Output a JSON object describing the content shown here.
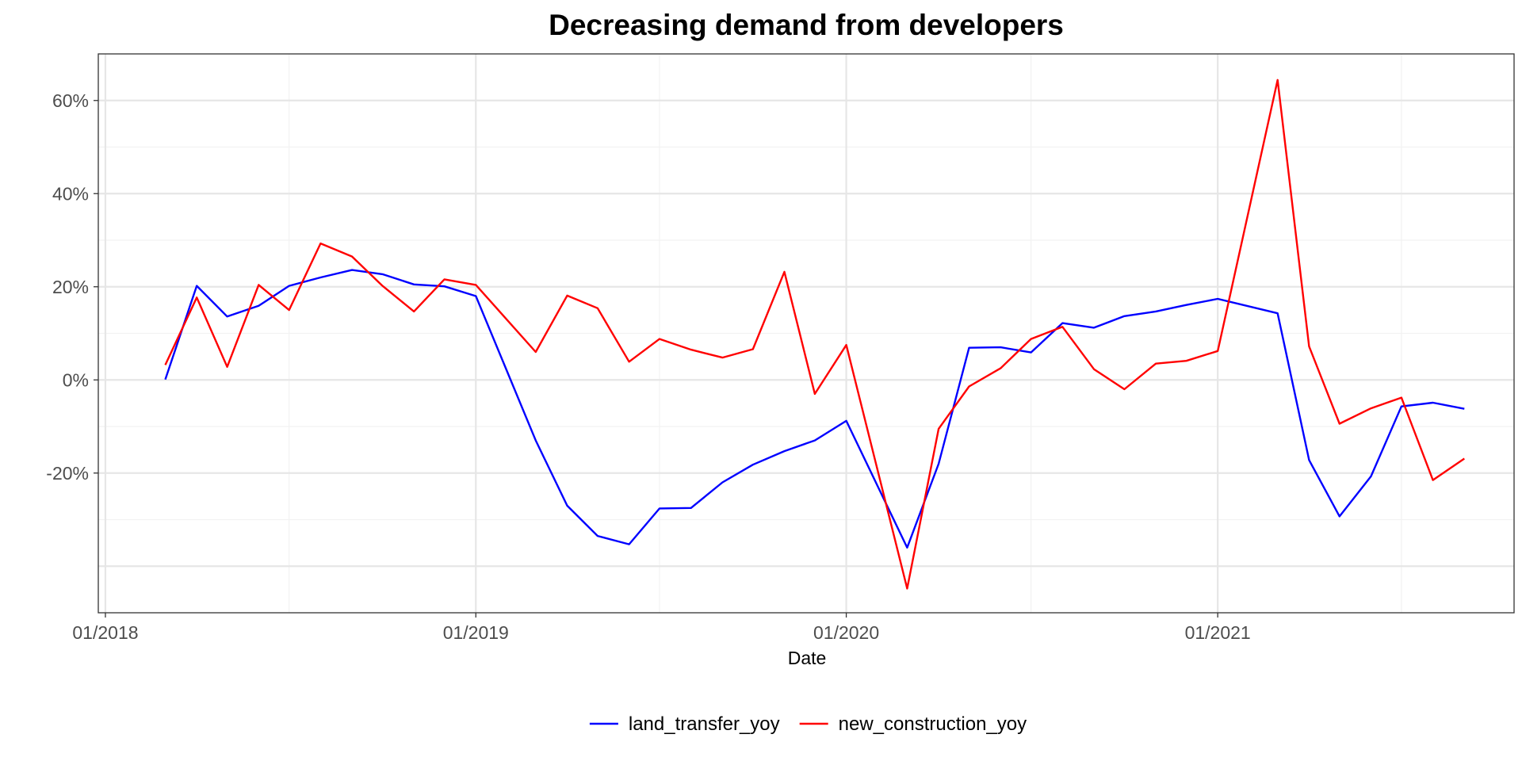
{
  "chart_data": {
    "type": "line",
    "title": "Decreasing demand from developers",
    "xlabel": "Date",
    "ylabel": "",
    "x_axis_type": "date",
    "x_date_format": "MM/YYYY",
    "xlim": [
      "2017-12-25",
      "2021-10-20"
    ],
    "ylim": [
      -50,
      70
    ],
    "x_ticks": [
      "01/2018",
      "01/2019",
      "01/2020",
      "01/2021"
    ],
    "y_ticks": [
      "60%",
      "40%",
      "20%",
      "0%",
      "-20%"
    ],
    "y_tick_values": [
      60,
      40,
      20,
      0,
      -20
    ],
    "y_unit": "%",
    "grid": true,
    "legend_position": "bottom",
    "x": [
      "2018-03",
      "2018-04",
      "2018-05",
      "2018-06",
      "2018-07",
      "2018-08",
      "2018-09",
      "2018-10",
      "2018-11",
      "2018-12",
      "2019-01",
      "2019-03",
      "2019-04",
      "2019-05",
      "2019-06",
      "2019-07",
      "2019-08",
      "2019-09",
      "2019-10",
      "2019-11",
      "2019-12",
      "2020-01",
      "2020-03",
      "2020-04",
      "2020-05",
      "2020-06",
      "2020-07",
      "2020-08",
      "2020-09",
      "2020-10",
      "2020-11",
      "2020-12",
      "2021-01",
      "2021-03",
      "2021-04",
      "2021-05",
      "2021-06",
      "2021-07",
      "2021-08",
      "2021-09"
    ],
    "series": [
      {
        "name": "land_transfer_yoy",
        "color": "#0000ff",
        "values": [
          0.1,
          20.2,
          13.6,
          15.9,
          20.2,
          22.0,
          23.6,
          22.7,
          20.5,
          20.1,
          18.0,
          -13.0,
          -27.0,
          -33.5,
          -35.3,
          -27.6,
          -27.5,
          -22.0,
          -18.2,
          -15.3,
          -13.0,
          -8.8,
          -36.0,
          -18.0,
          6.9,
          7.0,
          5.9,
          12.2,
          11.2,
          13.7,
          14.7,
          16.1,
          17.4,
          14.3,
          -17.2,
          -29.3,
          -20.7,
          -5.7,
          -4.9,
          -6.2
        ]
      },
      {
        "name": "new_construction_yoy",
        "color": "#ff0000",
        "values": [
          3.2,
          17.7,
          2.8,
          20.4,
          15.0,
          29.3,
          26.5,
          20.2,
          14.7,
          21.6,
          20.4,
          6.0,
          18.1,
          15.4,
          3.9,
          8.8,
          6.5,
          4.8,
          6.6,
          23.2,
          -3.0,
          7.5,
          -44.8,
          -10.5,
          -1.4,
          2.5,
          8.8,
          11.4,
          2.3,
          -2.0,
          3.5,
          4.1,
          6.2,
          64.4,
          7.2,
          -9.4,
          -6.1,
          -3.8,
          -21.5,
          -16.9
        ]
      }
    ]
  }
}
